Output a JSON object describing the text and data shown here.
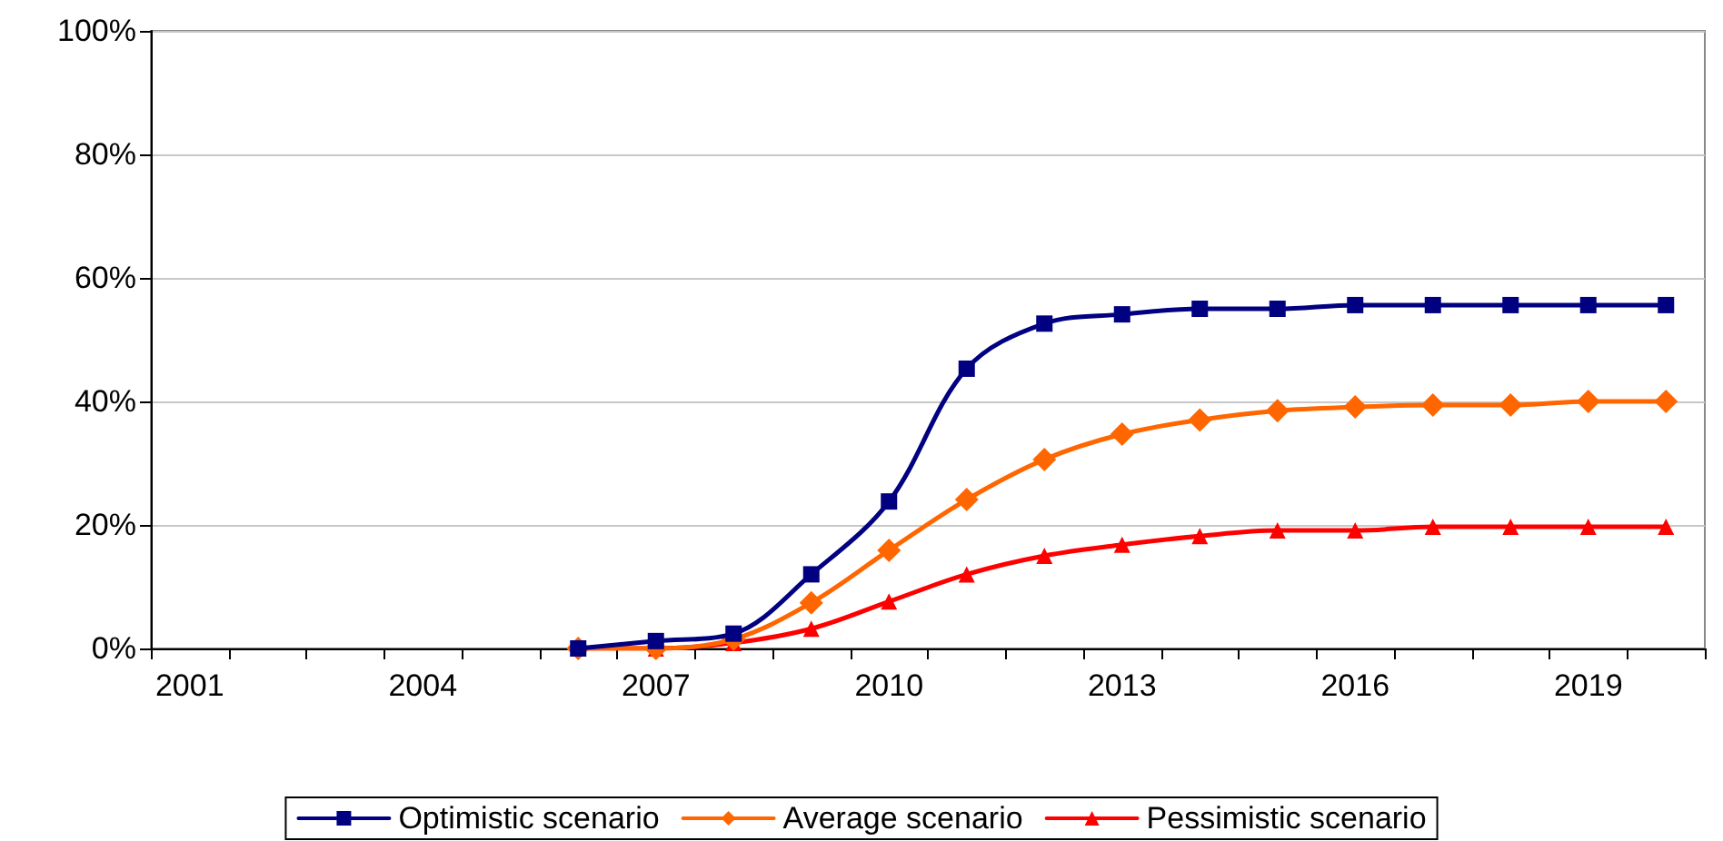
{
  "chart_data": {
    "type": "line",
    "categories": [
      "2001",
      null,
      null,
      "2004",
      null,
      null,
      "2007",
      null,
      null,
      "2010",
      null,
      null,
      "2013",
      null,
      null,
      "2016",
      null,
      null,
      "2019",
      null
    ],
    "series": [
      {
        "name": "Optimistic scenario",
        "color": "#000080",
        "marker": "square",
        "values": [
          null,
          null,
          null,
          null,
          null,
          0,
          1.2,
          2.4,
          12,
          23.8,
          45.3,
          52.6,
          54.1,
          55,
          55,
          55.6,
          55.6,
          55.6,
          55.6,
          55.6
        ]
      },
      {
        "name": "Average scenario",
        "color": "#ff6600",
        "marker": "diamond",
        "values": [
          null,
          null,
          null,
          null,
          null,
          0,
          0,
          1.5,
          7.4,
          15.9,
          24.1,
          30.6,
          34.7,
          37,
          38.5,
          39.1,
          39.4,
          39.4,
          40,
          40
        ]
      },
      {
        "name": "Pessimistic scenario",
        "color": "#ff0000",
        "marker": "triangle",
        "values": [
          null,
          null,
          null,
          null,
          null,
          0,
          0,
          0.9,
          3.2,
          7.6,
          12,
          15,
          16.8,
          18.2,
          19.1,
          19.1,
          19.7,
          19.7,
          19.7,
          19.7
        ]
      }
    ],
    "ylim": [
      0,
      100
    ],
    "yticks": [
      {
        "value": 0,
        "label": "0%"
      },
      {
        "value": 20,
        "label": "20%"
      },
      {
        "value": 40,
        "label": "40%"
      },
      {
        "value": 60,
        "label": "60%"
      },
      {
        "value": 80,
        "label": "80%"
      },
      {
        "value": 100,
        "label": "100%"
      }
    ],
    "grid": "y",
    "legend": "bottom"
  }
}
